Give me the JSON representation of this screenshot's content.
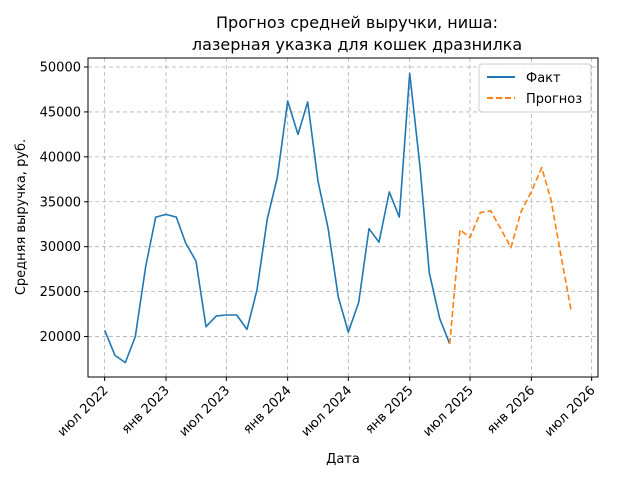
{
  "chart_data": {
    "type": "line",
    "title_lines": [
      "Прогноз средней выручки, ниша:",
      "лазерная указка для кошек дразнилка"
    ],
    "xlabel": "Дата",
    "ylabel": "Средняя выручка, руб.",
    "xlim": [
      "2022-05-12",
      "2026-07-20"
    ],
    "ylim": [
      15500,
      51000
    ],
    "grid": true,
    "legend_placement": "top-right",
    "x_ticks": [
      {
        "date": "2022-07-01",
        "label": "июл 2022"
      },
      {
        "date": "2023-01-01",
        "label": "янв 2023"
      },
      {
        "date": "2023-07-01",
        "label": "июл 2023"
      },
      {
        "date": "2024-01-01",
        "label": "янв 2024"
      },
      {
        "date": "2024-07-01",
        "label": "июл 2024"
      },
      {
        "date": "2025-01-01",
        "label": "янв 2025"
      },
      {
        "date": "2025-07-01",
        "label": "июл 2025"
      },
      {
        "date": "2026-01-01",
        "label": "янв 2026"
      },
      {
        "date": "2026-07-01",
        "label": "июл 2026"
      }
    ],
    "y_ticks": [
      20000,
      25000,
      30000,
      35000,
      40000,
      45000,
      50000
    ],
    "series": [
      {
        "name": "Факт",
        "color": "#1f77b4",
        "style": "solid",
        "points": [
          [
            "2022-07-01",
            20700
          ],
          [
            "2022-08-01",
            17900
          ],
          [
            "2022-09-01",
            17100
          ],
          [
            "2022-10-01",
            20000
          ],
          [
            "2022-11-01",
            27800
          ],
          [
            "2022-12-01",
            33300
          ],
          [
            "2023-01-01",
            33600
          ],
          [
            "2023-02-01",
            33300
          ],
          [
            "2023-03-01",
            30400
          ],
          [
            "2023-04-01",
            28400
          ],
          [
            "2023-05-01",
            21100
          ],
          [
            "2023-06-01",
            22300
          ],
          [
            "2023-07-01",
            22400
          ],
          [
            "2023-08-01",
            22400
          ],
          [
            "2023-09-01",
            20800
          ],
          [
            "2023-10-01",
            25200
          ],
          [
            "2023-11-01",
            33100
          ],
          [
            "2023-12-01",
            37700
          ],
          [
            "2024-01-01",
            46200
          ],
          [
            "2024-02-01",
            42500
          ],
          [
            "2024-03-01",
            46100
          ],
          [
            "2024-04-01",
            37300
          ],
          [
            "2024-05-01",
            32100
          ],
          [
            "2024-06-01",
            24400
          ],
          [
            "2024-07-01",
            20500
          ],
          [
            "2024-08-01",
            23800
          ],
          [
            "2024-09-01",
            32000
          ],
          [
            "2024-10-01",
            30500
          ],
          [
            "2024-11-01",
            36100
          ],
          [
            "2024-12-01",
            33300
          ],
          [
            "2025-01-01",
            49300
          ],
          [
            "2025-02-01",
            38900
          ],
          [
            "2025-03-01",
            27100
          ],
          [
            "2025-04-01",
            22000
          ],
          [
            "2025-05-01",
            19200
          ]
        ]
      },
      {
        "name": "Прогноз",
        "color": "#ff7f0e",
        "style": "dashed",
        "points": [
          [
            "2025-05-01",
            19200
          ],
          [
            "2025-06-01",
            31900
          ],
          [
            "2025-07-01",
            31000
          ],
          [
            "2025-08-01",
            33800
          ],
          [
            "2025-09-01",
            34000
          ],
          [
            "2025-10-01",
            32000
          ],
          [
            "2025-11-01",
            29900
          ],
          [
            "2025-12-01",
            33900
          ],
          [
            "2026-01-01",
            36100
          ],
          [
            "2026-02-01",
            38800
          ],
          [
            "2026-03-01",
            35200
          ],
          [
            "2026-04-01",
            28800
          ],
          [
            "2026-05-01",
            22800
          ]
        ]
      }
    ]
  }
}
